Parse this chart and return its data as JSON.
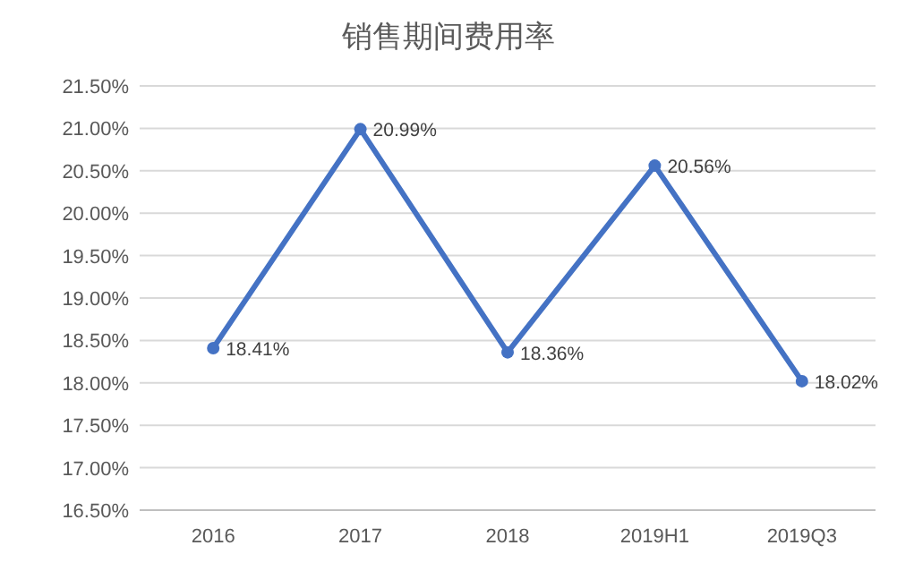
{
  "chart_data": {
    "type": "line",
    "title": "销售期间费用率",
    "categories": [
      "2016",
      "2017",
      "2018",
      "2019H1",
      "2019Q3"
    ],
    "series": [
      {
        "color": "#4472c4",
        "values": [
          18.41,
          20.99,
          18.36,
          20.56,
          18.02
        ],
        "value_labels": [
          "18.41%",
          "20.99%",
          "18.36%",
          "20.56%",
          "18.02%"
        ]
      }
    ],
    "ylim": [
      16.5,
      21.5
    ],
    "yticks": [
      {
        "value": 16.5,
        "label": "16.50%"
      },
      {
        "value": 17,
        "label": "17.00%"
      },
      {
        "value": 17.5,
        "label": "17.50%"
      },
      {
        "value": 18,
        "label": "18.00%"
      },
      {
        "value": 18.5,
        "label": "18.50%"
      },
      {
        "value": 19,
        "label": "19.00%"
      },
      {
        "value": 19.5,
        "label": "19.50%"
      },
      {
        "value": 20,
        "label": "20.00%"
      },
      {
        "value": 20.5,
        "label": "20.50%"
      },
      {
        "value": 21,
        "label": "21.00%"
      },
      {
        "value": 21.5,
        "label": "21.50%"
      }
    ],
    "grid": "y",
    "marker": "circle",
    "line_style": "solid"
  }
}
